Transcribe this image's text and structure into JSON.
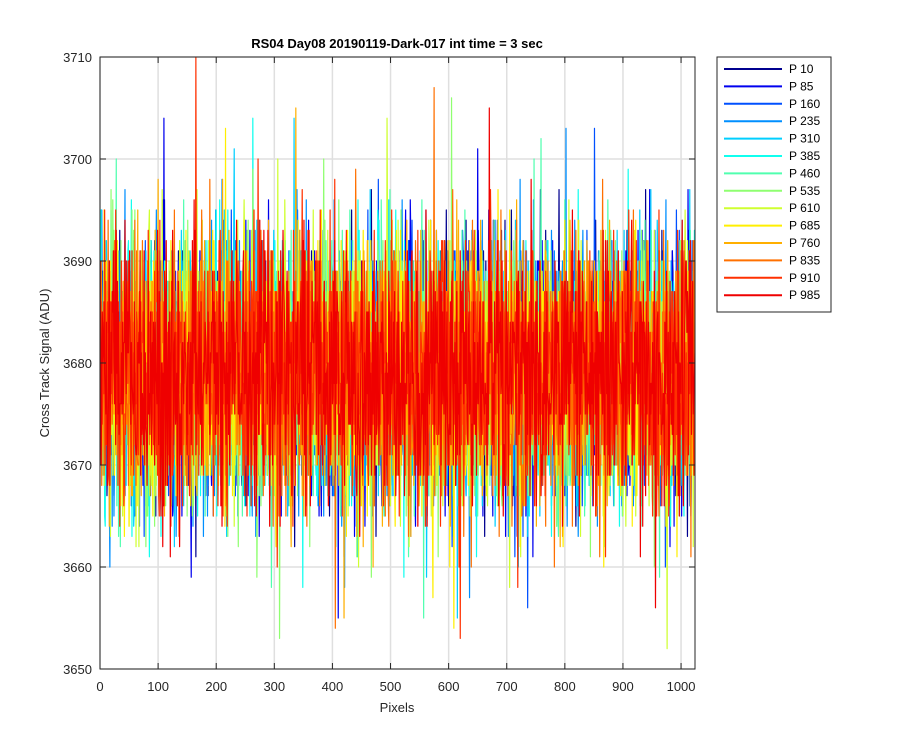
{
  "chart_data": {
    "type": "line",
    "title": "RS04 Day08 20190119-Dark-017 int time = 3 sec",
    "xlabel": "Pixels",
    "ylabel": "Cross Track Signal (ADU)",
    "xlim": [
      0,
      1024
    ],
    "ylim": [
      3650,
      3710
    ],
    "xticks": [
      0,
      100,
      200,
      300,
      400,
      500,
      600,
      700,
      800,
      900,
      1000
    ],
    "yticks": [
      3650,
      3660,
      3670,
      3680,
      3690,
      3700,
      3710
    ],
    "grid": true,
    "legend_position": "outside-top-right",
    "n_points": 1024,
    "baseline": 3679,
    "series": [
      {
        "name": "P 10",
        "color": "#00008f",
        "min": 3661,
        "max": 3697,
        "seed": 10
      },
      {
        "name": "P 85",
        "color": "#0000ef",
        "min": 3655,
        "max": 3704,
        "seed": 85
      },
      {
        "name": "P 160",
        "color": "#0050ff",
        "min": 3656,
        "max": 3703,
        "seed": 160
      },
      {
        "name": "P 235",
        "color": "#008fff",
        "min": 3657,
        "max": 3703,
        "seed": 235
      },
      {
        "name": "P 310",
        "color": "#00cfff",
        "min": 3655,
        "max": 3704,
        "seed": 310
      },
      {
        "name": "P 385",
        "color": "#10ffef",
        "min": 3658,
        "max": 3704,
        "seed": 385
      },
      {
        "name": "P 460",
        "color": "#50ffaf",
        "min": 3655,
        "max": 3702,
        "seed": 460
      },
      {
        "name": "P 535",
        "color": "#8fff70",
        "min": 3653,
        "max": 3706,
        "seed": 535
      },
      {
        "name": "P 610",
        "color": "#cfff30",
        "min": 3652,
        "max": 3704,
        "seed": 610
      },
      {
        "name": "P 685",
        "color": "#ffef00",
        "min": 3654,
        "max": 3703,
        "seed": 685
      },
      {
        "name": "P 760",
        "color": "#ffaf00",
        "min": 3655,
        "max": 3705,
        "seed": 760
      },
      {
        "name": "P 835",
        "color": "#ff7000",
        "min": 3654,
        "max": 3707,
        "seed": 835
      },
      {
        "name": "P 910",
        "color": "#ff3000",
        "min": 3653,
        "max": 3710,
        "seed": 910
      },
      {
        "name": "P 985",
        "color": "#ef0000",
        "min": 3656,
        "max": 3705,
        "seed": 985
      }
    ]
  }
}
